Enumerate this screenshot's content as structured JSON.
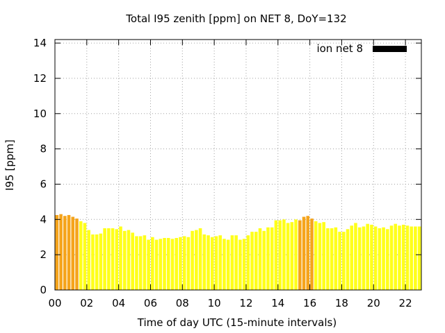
{
  "chart_data": {
    "type": "bar",
    "title": "Total I95 zenith [ppm] on NET 8, DoY=132",
    "xlabel": "Time of day UTC (15-minute intervals)",
    "ylabel": "I95 [ppm]",
    "xlim": [
      0,
      23
    ],
    "ylim": [
      0,
      14.2
    ],
    "grid": true,
    "legend": {
      "position": "top-right",
      "label": "ion net 8",
      "swatch_color": "#000000"
    },
    "x_ticks": [
      "00",
      "02",
      "04",
      "06",
      "08",
      "10",
      "12",
      "14",
      "16",
      "18",
      "20",
      "22"
    ],
    "y_ticks": [
      "0",
      "2",
      "4",
      "6",
      "8",
      "10",
      "12",
      "14"
    ],
    "colors": {
      "high": "#f5a41b",
      "normal": "#ffff1a"
    },
    "bar_width_hours": 0.2,
    "series": [
      {
        "x": [
          0.125,
          0.375,
          0.625,
          0.875,
          1.125,
          1.375,
          1.625,
          1.875,
          2.125,
          2.375,
          2.625,
          2.875,
          3.125,
          3.375,
          3.625,
          3.875,
          4.125,
          4.375,
          4.625,
          4.875,
          5.125,
          5.375,
          5.625,
          5.875,
          6.125,
          6.375,
          6.625,
          6.875,
          7.125,
          7.375,
          7.625,
          7.875,
          8.125,
          8.375,
          8.625,
          8.875,
          9.125,
          9.375,
          9.625,
          9.875,
          10.125,
          10.375,
          10.625,
          10.875,
          11.125,
          11.375,
          11.625,
          11.875,
          12.125,
          12.375,
          12.625,
          12.875,
          13.125,
          13.375,
          13.625,
          13.875,
          14.125,
          14.375,
          14.625,
          14.875,
          15.125,
          15.375,
          15.625,
          15.875,
          16.125,
          16.375,
          16.625,
          16.875,
          17.125,
          17.375,
          17.625,
          17.875,
          18.125,
          18.375,
          18.625,
          18.875,
          19.125,
          19.375,
          19.625,
          19.875,
          20.125,
          20.375,
          20.625,
          20.875,
          21.125,
          21.375,
          21.625,
          21.875,
          22.125,
          22.375,
          22.625,
          22.875
        ],
        "values": [
          4.25,
          4.3,
          4.2,
          4.25,
          4.15,
          4.05,
          3.9,
          3.8,
          3.4,
          3.15,
          3.15,
          3.2,
          3.5,
          3.5,
          3.5,
          3.45,
          3.6,
          3.35,
          3.4,
          3.25,
          3.05,
          3.05,
          3.1,
          2.85,
          3.0,
          2.85,
          2.9,
          2.95,
          2.95,
          2.9,
          2.95,
          3.0,
          3.05,
          3.0,
          3.35,
          3.4,
          3.5,
          3.15,
          3.1,
          3.0,
          3.05,
          3.1,
          2.9,
          2.85,
          3.1,
          3.1,
          2.85,
          2.9,
          3.1,
          3.3,
          3.3,
          3.5,
          3.35,
          3.55,
          3.55,
          3.95,
          3.95,
          4.0,
          3.8,
          3.85,
          4.0,
          3.95,
          4.15,
          4.2,
          4.05,
          3.9,
          3.8,
          3.85,
          3.5,
          3.5,
          3.55,
          3.3,
          3.3,
          3.45,
          3.65,
          3.8,
          3.55,
          3.6,
          3.75,
          3.7,
          3.6,
          3.5,
          3.55,
          3.45,
          3.65,
          3.75,
          3.65,
          3.7,
          3.65,
          3.6,
          3.6,
          3.6
        ],
        "level": [
          "high",
          "high",
          "high",
          "high",
          "high",
          "high",
          "normal",
          "normal",
          "normal",
          "normal",
          "normal",
          "normal",
          "normal",
          "normal",
          "normal",
          "normal",
          "normal",
          "normal",
          "normal",
          "normal",
          "normal",
          "normal",
          "normal",
          "normal",
          "normal",
          "normal",
          "normal",
          "normal",
          "normal",
          "normal",
          "normal",
          "normal",
          "normal",
          "normal",
          "normal",
          "normal",
          "normal",
          "normal",
          "normal",
          "normal",
          "normal",
          "normal",
          "normal",
          "normal",
          "normal",
          "normal",
          "normal",
          "normal",
          "normal",
          "normal",
          "normal",
          "normal",
          "normal",
          "normal",
          "normal",
          "normal",
          "normal",
          "normal",
          "normal",
          "normal",
          "normal",
          "high",
          "high",
          "high",
          "high",
          "normal",
          "normal",
          "normal",
          "normal",
          "normal",
          "normal",
          "normal",
          "normal",
          "normal",
          "normal",
          "normal",
          "normal",
          "normal",
          "normal",
          "normal",
          "normal",
          "normal",
          "normal",
          "normal",
          "normal",
          "normal",
          "normal",
          "normal",
          "normal",
          "normal",
          "normal",
          "normal"
        ]
      }
    ]
  }
}
